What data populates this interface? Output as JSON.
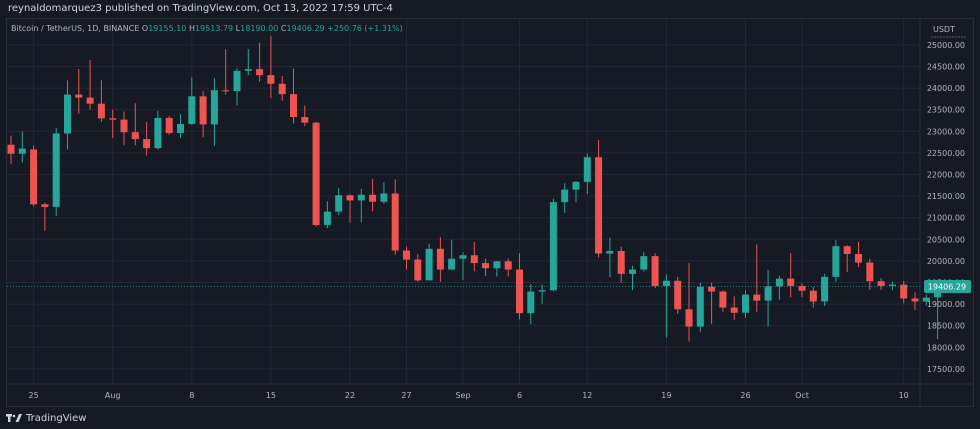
{
  "header": {
    "published_text": "reynaldomarquez3 published on TradingView.com, Oct 13, 2022 17:59 UTC-4"
  },
  "legend": {
    "symbol": "Bitcoin / TetherUS, 1D, BINANCE",
    "o_label": "O",
    "o_value": "19155.10",
    "h_label": "H",
    "h_value": "19513.79",
    "l_label": "L",
    "l_value": "18190.00",
    "c_label": "C",
    "c_value": "19406.29",
    "change": "+250.76 (+1.31%)"
  },
  "footer": {
    "brand": "TradingView",
    "logo_icon": "tradingview-logo-icon"
  },
  "colors": {
    "up": "#26a69a",
    "down": "#ef5350",
    "grid": "#232734",
    "axis_text": "#b2b5be",
    "price_tag_bg": "#26a69a"
  },
  "chart_data": {
    "type": "candlestick",
    "currency_label": "USDT",
    "y_ticks": [
      "17500.00",
      "18000.00",
      "18500.00",
      "19000.00",
      "19500.00",
      "20000.00",
      "20500.00",
      "21000.00",
      "21500.00",
      "22000.00",
      "22500.00",
      "23000.00",
      "23500.00",
      "24000.00",
      "24500.00",
      "25000.00"
    ],
    "ylim": [
      17150,
      25600
    ],
    "x_tick_labels": [
      {
        "label": "25",
        "date": "2022-07-25"
      },
      {
        "label": "Aug",
        "date": "2022-08-01"
      },
      {
        "label": "8",
        "date": "2022-08-08"
      },
      {
        "label": "15",
        "date": "2022-08-15"
      },
      {
        "label": "22",
        "date": "2022-08-22"
      },
      {
        "label": "27",
        "date": "2022-08-27"
      },
      {
        "label": "Sep",
        "date": "2022-09-01"
      },
      {
        "label": "6",
        "date": "2022-09-06"
      },
      {
        "label": "12",
        "date": "2022-09-12"
      },
      {
        "label": "19",
        "date": "2022-09-19"
      },
      {
        "label": "26",
        "date": "2022-09-26"
      },
      {
        "label": "Oct",
        "date": "2022-10-01"
      },
      {
        "label": "10",
        "date": "2022-10-10"
      }
    ],
    "last_price": "19406.29",
    "candles": [
      {
        "date": "2022-07-23",
        "o": 22690,
        "h": 22900,
        "l": 22250,
        "c": 22480
      },
      {
        "date": "2022-07-24",
        "o": 22480,
        "h": 23000,
        "l": 22280,
        "c": 22600
      },
      {
        "date": "2022-07-25",
        "o": 22580,
        "h": 22670,
        "l": 21260,
        "c": 21310
      },
      {
        "date": "2022-07-26",
        "o": 21310,
        "h": 21350,
        "l": 20700,
        "c": 21250
      },
      {
        "date": "2022-07-27",
        "o": 21250,
        "h": 23080,
        "l": 21040,
        "c": 22950
      },
      {
        "date": "2022-07-28",
        "o": 22950,
        "h": 24180,
        "l": 22580,
        "c": 23850
      },
      {
        "date": "2022-07-29",
        "o": 23850,
        "h": 24440,
        "l": 23410,
        "c": 23780
      },
      {
        "date": "2022-07-30",
        "o": 23780,
        "h": 24650,
        "l": 23500,
        "c": 23640
      },
      {
        "date": "2022-07-31",
        "o": 23640,
        "h": 24180,
        "l": 23220,
        "c": 23300
      },
      {
        "date": "2022-08-01",
        "o": 23300,
        "h": 23500,
        "l": 22850,
        "c": 23270
      },
      {
        "date": "2022-08-02",
        "o": 23270,
        "h": 23460,
        "l": 22680,
        "c": 22980
      },
      {
        "date": "2022-08-03",
        "o": 22980,
        "h": 23650,
        "l": 22680,
        "c": 22820
      },
      {
        "date": "2022-08-04",
        "o": 22820,
        "h": 23220,
        "l": 22440,
        "c": 22610
      },
      {
        "date": "2022-08-05",
        "o": 22610,
        "h": 23470,
        "l": 22580,
        "c": 23310
      },
      {
        "date": "2022-08-06",
        "o": 23310,
        "h": 23350,
        "l": 22920,
        "c": 22960
      },
      {
        "date": "2022-08-07",
        "o": 22960,
        "h": 23400,
        "l": 22850,
        "c": 23170
      },
      {
        "date": "2022-08-08",
        "o": 23170,
        "h": 24250,
        "l": 23150,
        "c": 23810
      },
      {
        "date": "2022-08-09",
        "o": 23810,
        "h": 23930,
        "l": 22860,
        "c": 23160
      },
      {
        "date": "2022-08-10",
        "o": 23160,
        "h": 24230,
        "l": 22660,
        "c": 23950
      },
      {
        "date": "2022-08-11",
        "o": 23950,
        "h": 24900,
        "l": 23850,
        "c": 23930
      },
      {
        "date": "2022-08-12",
        "o": 23930,
        "h": 24460,
        "l": 23600,
        "c": 24400
      },
      {
        "date": "2022-08-13",
        "o": 24400,
        "h": 24900,
        "l": 24300,
        "c": 24440
      },
      {
        "date": "2022-08-14",
        "o": 24440,
        "h": 25050,
        "l": 24150,
        "c": 24300
      },
      {
        "date": "2022-08-15",
        "o": 24300,
        "h": 25210,
        "l": 23770,
        "c": 24100
      },
      {
        "date": "2022-08-16",
        "o": 24100,
        "h": 24280,
        "l": 23710,
        "c": 23860
      },
      {
        "date": "2022-08-17",
        "o": 23860,
        "h": 24450,
        "l": 23180,
        "c": 23330
      },
      {
        "date": "2022-08-18",
        "o": 23330,
        "h": 23600,
        "l": 23120,
        "c": 23200
      },
      {
        "date": "2022-08-19",
        "o": 23200,
        "h": 23220,
        "l": 20800,
        "c": 20830
      },
      {
        "date": "2022-08-20",
        "o": 20830,
        "h": 21380,
        "l": 20760,
        "c": 21140
      },
      {
        "date": "2022-08-21",
        "o": 21140,
        "h": 21690,
        "l": 21060,
        "c": 21520
      },
      {
        "date": "2022-08-22",
        "o": 21520,
        "h": 21540,
        "l": 20880,
        "c": 21400
      },
      {
        "date": "2022-08-23",
        "o": 21400,
        "h": 21670,
        "l": 20890,
        "c": 21530
      },
      {
        "date": "2022-08-24",
        "o": 21530,
        "h": 21900,
        "l": 21150,
        "c": 21370
      },
      {
        "date": "2022-08-25",
        "o": 21370,
        "h": 21820,
        "l": 21320,
        "c": 21560
      },
      {
        "date": "2022-08-26",
        "o": 21560,
        "h": 21890,
        "l": 20140,
        "c": 20240
      },
      {
        "date": "2022-08-27",
        "o": 20240,
        "h": 20330,
        "l": 19800,
        "c": 20030
      },
      {
        "date": "2022-08-28",
        "o": 20030,
        "h": 20160,
        "l": 19520,
        "c": 19550
      },
      {
        "date": "2022-08-29",
        "o": 19550,
        "h": 20400,
        "l": 19550,
        "c": 20280
      },
      {
        "date": "2022-08-30",
        "o": 20280,
        "h": 20550,
        "l": 19520,
        "c": 19800
      },
      {
        "date": "2022-08-31",
        "o": 19800,
        "h": 20490,
        "l": 19790,
        "c": 20050
      },
      {
        "date": "2022-09-01",
        "o": 20050,
        "h": 20200,
        "l": 19560,
        "c": 20130
      },
      {
        "date": "2022-09-02",
        "o": 20130,
        "h": 20440,
        "l": 19760,
        "c": 19950
      },
      {
        "date": "2022-09-03",
        "o": 19950,
        "h": 20050,
        "l": 19650,
        "c": 19830
      },
      {
        "date": "2022-09-04",
        "o": 19830,
        "h": 20000,
        "l": 19640,
        "c": 19990
      },
      {
        "date": "2022-09-05",
        "o": 19990,
        "h": 20050,
        "l": 19640,
        "c": 19800
      },
      {
        "date": "2022-09-06",
        "o": 19800,
        "h": 20180,
        "l": 18650,
        "c": 18790
      },
      {
        "date": "2022-09-07",
        "o": 18790,
        "h": 19460,
        "l": 18530,
        "c": 19290
      },
      {
        "date": "2022-09-08",
        "o": 19290,
        "h": 19450,
        "l": 19000,
        "c": 19320
      },
      {
        "date": "2022-09-09",
        "o": 19320,
        "h": 21440,
        "l": 19300,
        "c": 21360
      },
      {
        "date": "2022-09-10",
        "o": 21360,
        "h": 21800,
        "l": 21110,
        "c": 21650
      },
      {
        "date": "2022-09-11",
        "o": 21650,
        "h": 21850,
        "l": 21360,
        "c": 21830
      },
      {
        "date": "2022-09-12",
        "o": 21830,
        "h": 22490,
        "l": 21550,
        "c": 22400
      },
      {
        "date": "2022-09-13",
        "o": 22400,
        "h": 22800,
        "l": 20080,
        "c": 20170
      },
      {
        "date": "2022-09-14",
        "o": 20170,
        "h": 20540,
        "l": 19620,
        "c": 20230
      },
      {
        "date": "2022-09-15",
        "o": 20230,
        "h": 20330,
        "l": 19500,
        "c": 19700
      },
      {
        "date": "2022-09-16",
        "o": 19700,
        "h": 19890,
        "l": 19320,
        "c": 19800
      },
      {
        "date": "2022-09-17",
        "o": 19800,
        "h": 20200,
        "l": 19750,
        "c": 20110
      },
      {
        "date": "2022-09-18",
        "o": 20110,
        "h": 20180,
        "l": 19370,
        "c": 19420
      },
      {
        "date": "2022-09-19",
        "o": 19420,
        "h": 19690,
        "l": 18230,
        "c": 19540
      },
      {
        "date": "2022-09-20",
        "o": 19540,
        "h": 19630,
        "l": 18770,
        "c": 18880
      },
      {
        "date": "2022-09-21",
        "o": 18880,
        "h": 19950,
        "l": 18130,
        "c": 18480
      },
      {
        "date": "2022-09-22",
        "o": 18480,
        "h": 19500,
        "l": 18360,
        "c": 19400
      },
      {
        "date": "2022-09-23",
        "o": 19400,
        "h": 19500,
        "l": 18540,
        "c": 19290
      },
      {
        "date": "2022-09-24",
        "o": 19290,
        "h": 19320,
        "l": 18820,
        "c": 18920
      },
      {
        "date": "2022-09-25",
        "o": 18920,
        "h": 19180,
        "l": 18630,
        "c": 18800
      },
      {
        "date": "2022-09-26",
        "o": 18800,
        "h": 19320,
        "l": 18680,
        "c": 19220
      },
      {
        "date": "2022-09-27",
        "o": 19220,
        "h": 20380,
        "l": 18820,
        "c": 19080
      },
      {
        "date": "2022-09-28",
        "o": 19080,
        "h": 19790,
        "l": 18480,
        "c": 19410
      },
      {
        "date": "2022-09-29",
        "o": 19410,
        "h": 19650,
        "l": 19100,
        "c": 19590
      },
      {
        "date": "2022-09-30",
        "o": 19590,
        "h": 20180,
        "l": 19160,
        "c": 19420
      },
      {
        "date": "2022-10-01",
        "o": 19420,
        "h": 19480,
        "l": 19160,
        "c": 19310
      },
      {
        "date": "2022-10-02",
        "o": 19310,
        "h": 19400,
        "l": 18920,
        "c": 19060
      },
      {
        "date": "2022-10-03",
        "o": 19060,
        "h": 19700,
        "l": 18960,
        "c": 19630
      },
      {
        "date": "2022-10-04",
        "o": 19630,
        "h": 20480,
        "l": 19520,
        "c": 20340
      },
      {
        "date": "2022-10-05",
        "o": 20340,
        "h": 20360,
        "l": 19740,
        "c": 20160
      },
      {
        "date": "2022-10-06",
        "o": 20160,
        "h": 20440,
        "l": 19860,
        "c": 19960
      },
      {
        "date": "2022-10-07",
        "o": 19960,
        "h": 20050,
        "l": 19330,
        "c": 19530
      },
      {
        "date": "2022-10-08",
        "o": 19530,
        "h": 19600,
        "l": 19330,
        "c": 19420
      },
      {
        "date": "2022-10-09",
        "o": 19420,
        "h": 19520,
        "l": 19320,
        "c": 19450
      },
      {
        "date": "2022-10-10",
        "o": 19450,
        "h": 19530,
        "l": 19020,
        "c": 19130
      },
      {
        "date": "2022-10-11",
        "o": 19130,
        "h": 19270,
        "l": 18860,
        "c": 19060
      },
      {
        "date": "2022-10-12",
        "o": 19060,
        "h": 19220,
        "l": 18970,
        "c": 19150
      },
      {
        "date": "2022-10-13",
        "o": 19155,
        "h": 19514,
        "l": 18190,
        "c": 19406
      }
    ]
  }
}
